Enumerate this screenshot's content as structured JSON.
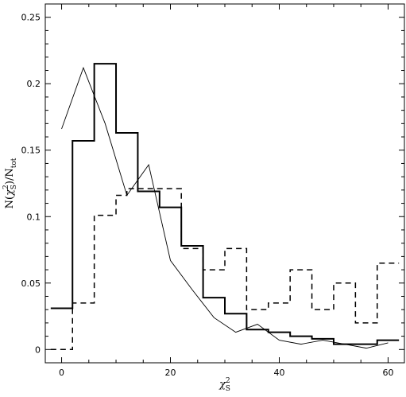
{
  "chart_data": {
    "type": "line",
    "xlim": [
      -3,
      63
    ],
    "ylim": [
      -0.01,
      0.26
    ],
    "grid": false,
    "legend": "none",
    "xticks": [
      0,
      20,
      40,
      60
    ],
    "yticks": [
      0,
      0.05,
      0.1,
      0.15,
      0.2,
      0.25
    ],
    "xtick_labels": [
      "0",
      "20",
      "40",
      "60"
    ],
    "ytick_labels": [
      "0",
      "0.05",
      "0.1",
      "0.15",
      "0.2",
      "0.25"
    ],
    "xlabel": {
      "base": "χ",
      "sup": "2",
      "sub": "S"
    },
    "ylabel": {
      "prefix": "N(",
      "chi": "χ",
      "sup": "2",
      "sub": "S",
      "mid": ")/N",
      "sub2": "tot"
    },
    "series": [
      {
        "style": "step-solid-thick",
        "color": "#000000",
        "edges": [
          -2,
          2,
          6,
          10,
          14,
          18,
          22,
          26,
          30,
          34,
          38,
          42,
          46,
          50,
          54,
          58,
          62
        ],
        "values": [
          0.031,
          0.157,
          0.215,
          0.163,
          0.119,
          0.107,
          0.078,
          0.039,
          0.027,
          0.015,
          0.013,
          0.01,
          0.008,
          0.004,
          0.004,
          0.007
        ]
      },
      {
        "style": "step-dashed",
        "color": "#000000",
        "edges": [
          -2,
          2,
          6,
          10,
          12,
          14,
          22,
          26,
          30,
          34,
          38,
          42,
          46,
          50,
          54,
          58,
          62
        ],
        "values": [
          0.0,
          0.035,
          0.101,
          0.116,
          0.121,
          0.121,
          0.076,
          0.06,
          0.076,
          0.03,
          0.035,
          0.06,
          0.03,
          0.05,
          0.02,
          0.065
        ]
      },
      {
        "style": "line-thin",
        "color": "#000000",
        "x": [
          0,
          4,
          8,
          12,
          16,
          20,
          24,
          28,
          32,
          36,
          40,
          44,
          48,
          52,
          56,
          60
        ],
        "y": [
          0.166,
          0.212,
          0.17,
          0.116,
          0.139,
          0.067,
          0.045,
          0.024,
          0.013,
          0.019,
          0.007,
          0.004,
          0.007,
          0.004,
          0.001,
          0.005
        ]
      }
    ]
  }
}
